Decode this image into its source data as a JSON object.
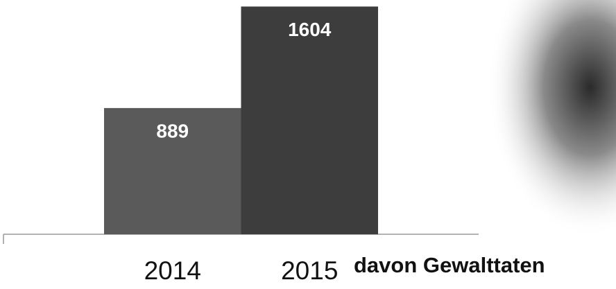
{
  "chart_data": {
    "type": "bar",
    "categories": [
      "2014",
      "2015"
    ],
    "values": [
      889,
      1604
    ],
    "colors": [
      "#5a5a5a",
      "#3d3d3d"
    ],
    "ylim": [
      0,
      1650
    ],
    "annotation": "davon Gewalttaten"
  }
}
